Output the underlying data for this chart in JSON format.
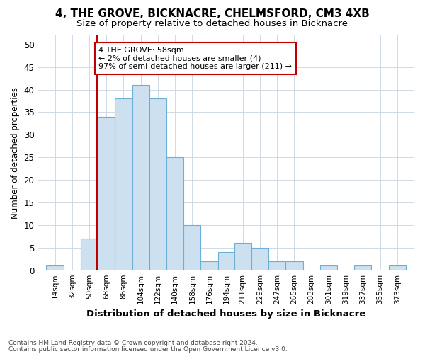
{
  "title1": "4, THE GROVE, BICKNACRE, CHELMSFORD, CM3 4XB",
  "title2": "Size of property relative to detached houses in Bicknacre",
  "xlabel": "Distribution of detached houses by size in Bicknacre",
  "ylabel": "Number of detached properties",
  "footnote1": "Contains HM Land Registry data © Crown copyright and database right 2024.",
  "footnote2": "Contains public sector information licensed under the Open Government Licence v3.0.",
  "bin_labels": [
    "14sqm",
    "32sqm",
    "50sqm",
    "68sqm",
    "86sqm",
    "104sqm",
    "122sqm",
    "140sqm",
    "158sqm",
    "176sqm",
    "194sqm",
    "211sqm",
    "229sqm",
    "247sqm",
    "265sqm",
    "283sqm",
    "301sqm",
    "319sqm",
    "337sqm",
    "355sqm",
    "373sqm"
  ],
  "bar_values": [
    1,
    0,
    7,
    34,
    38,
    41,
    38,
    25,
    10,
    2,
    4,
    6,
    5,
    2,
    2,
    0,
    1,
    0,
    1,
    0,
    1
  ],
  "bar_color": "#cce0f0",
  "bar_edge_color": "#6baed6",
  "vline_x": 58,
  "vline_color": "#c00000",
  "annotation_text": "4 THE GROVE: 58sqm\n← 2% of detached houses are smaller (4)\n97% of semi-detached houses are larger (211) →",
  "annotation_box_color": "white",
  "annotation_box_edge_color": "#c00000",
  "ylim": [
    0,
    52
  ],
  "yticks": [
    0,
    5,
    10,
    15,
    20,
    25,
    30,
    35,
    40,
    45,
    50
  ],
  "background_color": "#ffffff",
  "plot_background_color": "#ffffff",
  "grid_color": "#c8d4e0"
}
